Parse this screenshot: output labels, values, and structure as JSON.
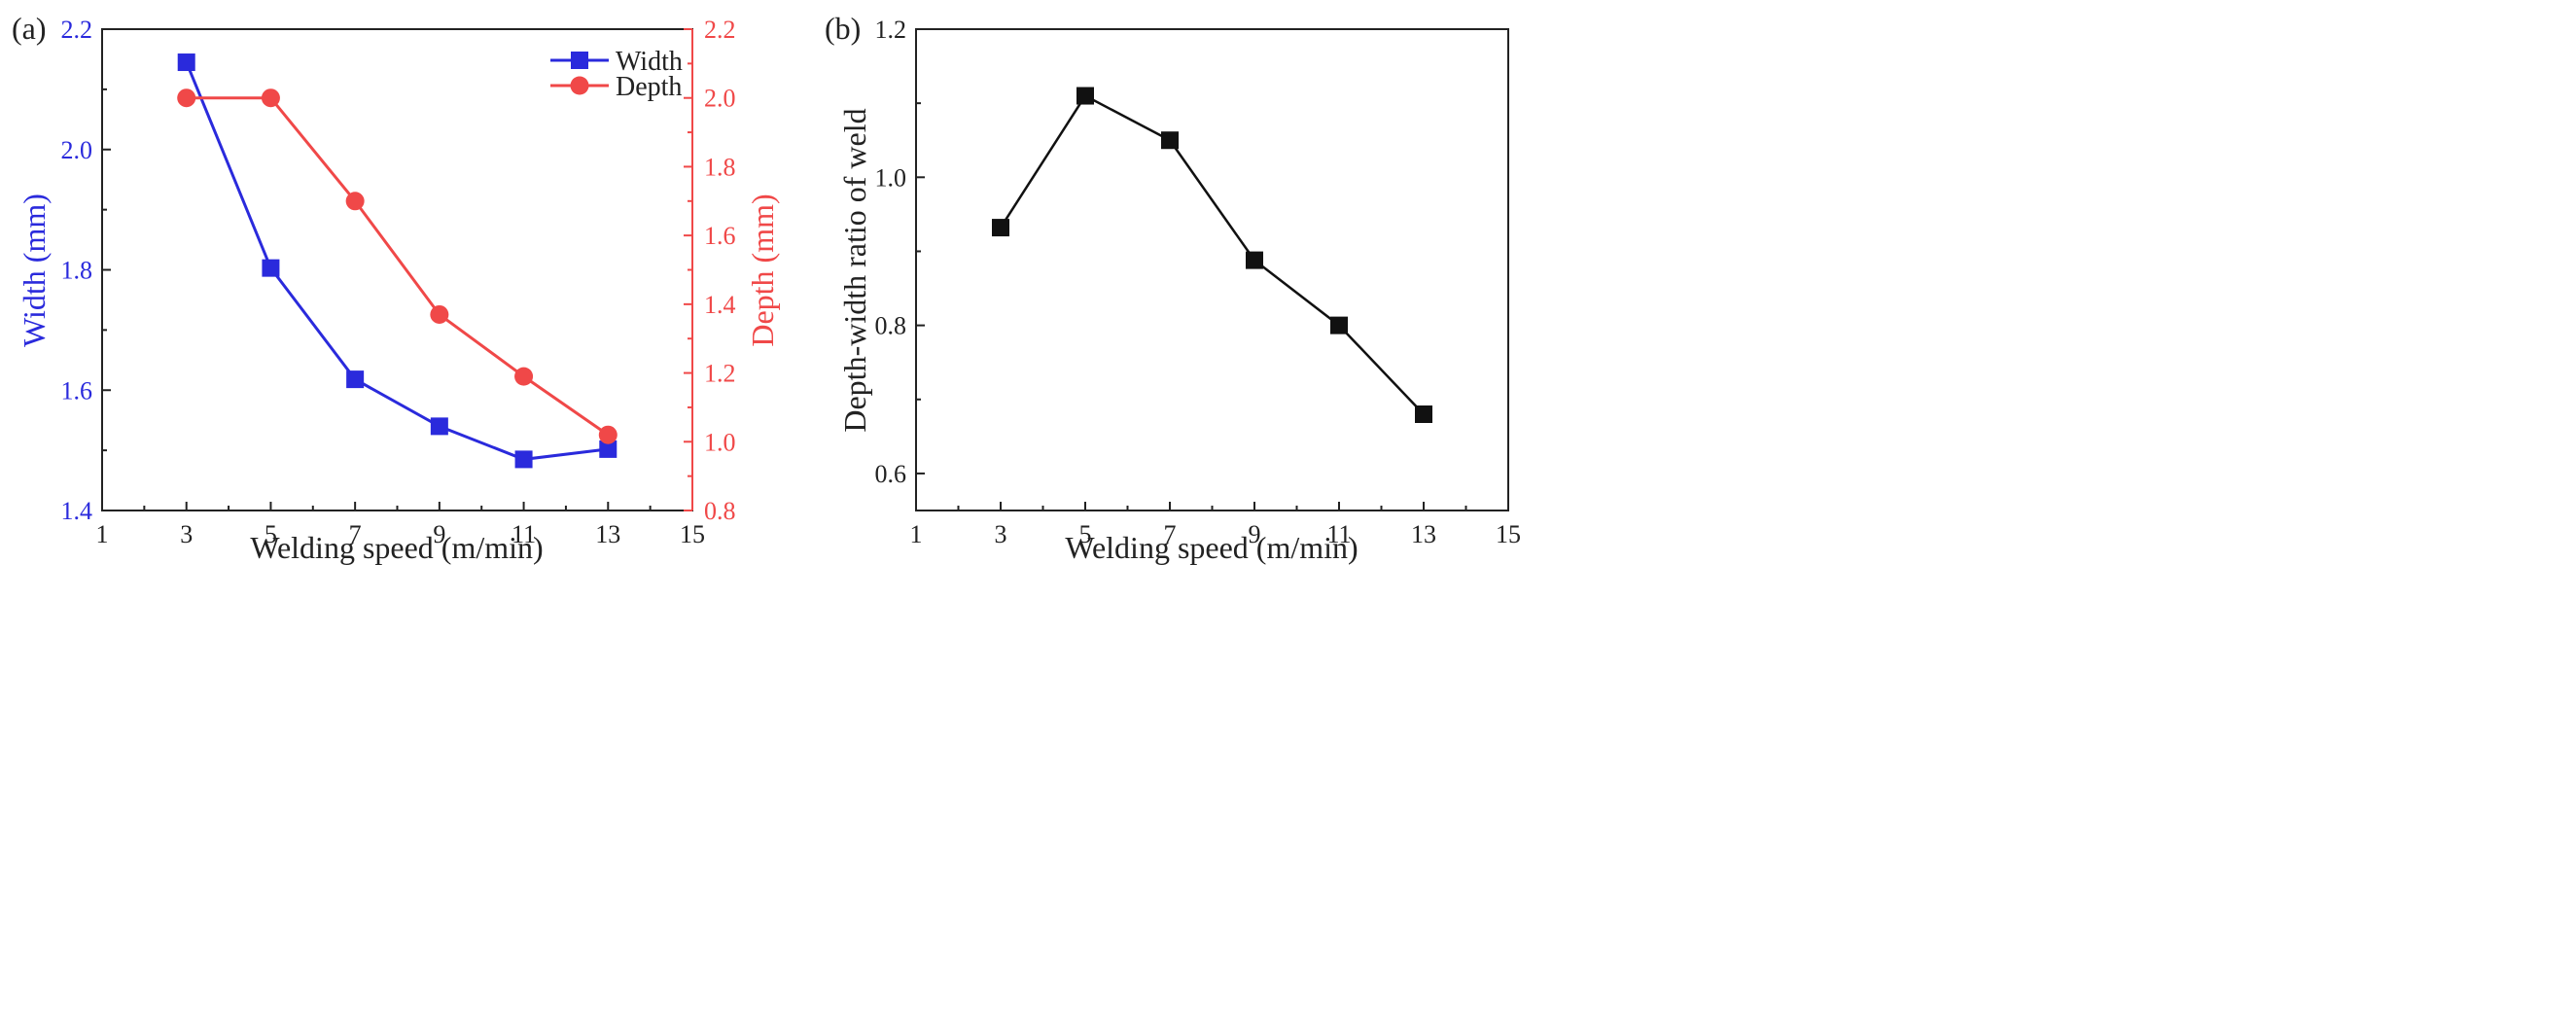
{
  "colors": {
    "width": "#2a2adc",
    "depth": "#f04848",
    "ratio": "#111111",
    "axis": "#222222"
  },
  "chart_data": [
    {
      "panel_label": "(a)",
      "type": "line",
      "title": "",
      "xlabel": "Welding speed (m/min)",
      "ylabel": "Width (mm)",
      "y2label": "Depth (mm)",
      "xlim": [
        1,
        15
      ],
      "ylim": [
        1.4,
        2.2
      ],
      "y2lim": [
        0.8,
        2.2
      ],
      "x_ticks": [
        "1",
        "3",
        "5",
        "7",
        "9",
        "11",
        "13",
        "15"
      ],
      "y_ticks": [
        "1.4",
        "1.6",
        "1.8",
        "2.0",
        "2.2"
      ],
      "y2_ticks": [
        "0.8",
        "1.0",
        "1.2",
        "1.4",
        "1.6",
        "1.8",
        "2.0",
        "2.2"
      ],
      "x": [
        3,
        5,
        7,
        9,
        11,
        13
      ],
      "legend_position": "top-right",
      "series": [
        {
          "name": "Width",
          "axis": "left",
          "marker": "square",
          "values": [
            2.145,
            1.803,
            1.618,
            1.54,
            1.485,
            1.502
          ]
        },
        {
          "name": "Depth",
          "axis": "right",
          "marker": "circle",
          "values": [
            2.0,
            2.0,
            1.7,
            1.37,
            1.19,
            1.02
          ]
        }
      ]
    },
    {
      "panel_label": "(b)",
      "type": "line",
      "title": "",
      "xlabel": "Welding speed (m/min)",
      "ylabel": "Depth-width ratio of weld",
      "xlim": [
        1,
        15
      ],
      "ylim": [
        0.55,
        1.2
      ],
      "x_ticks": [
        "1",
        "3",
        "5",
        "7",
        "9",
        "11",
        "13",
        "15"
      ],
      "y_ticks": [
        "0.6",
        "0.8",
        "1.0",
        "1.2"
      ],
      "x": [
        3,
        5,
        7,
        9,
        11,
        13
      ],
      "series": [
        {
          "name": "Depth-width ratio",
          "marker": "square",
          "values": [
            0.932,
            1.11,
            1.05,
            0.888,
            0.8,
            0.68
          ]
        }
      ]
    }
  ]
}
